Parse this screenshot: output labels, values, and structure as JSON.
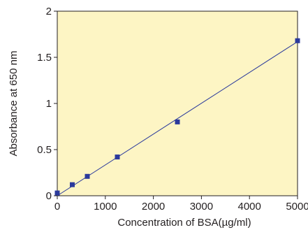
{
  "colors": {
    "plot_background": "#fdf5c4",
    "frame": "#231f20",
    "series": "#2b3a9c"
  },
  "chart_data": {
    "type": "scatter",
    "title": "",
    "xlabel": "Concentration of BSA(µg/ml)",
    "ylabel": "Absorbance at 650 nm",
    "xlim": [
      0,
      5000
    ],
    "ylim": [
      0,
      2
    ],
    "xticks": [
      0,
      1000,
      2000,
      3000,
      4000,
      5000
    ],
    "yticks": [
      0,
      0.5,
      1,
      1.5,
      2
    ],
    "xtick_labels": [
      "0",
      "1000",
      "2000",
      "3000",
      "4000",
      "5000"
    ],
    "ytick_labels": [
      "0",
      "0.5",
      "1",
      "1.5",
      "2"
    ],
    "grid": false,
    "legend": "none",
    "series": [
      {
        "marker": "square",
        "x": [
          0,
          312.5,
          625,
          1250,
          2500,
          5000
        ],
        "y": [
          0.03,
          0.12,
          0.21,
          0.42,
          0.8,
          1.68
        ]
      }
    ],
    "trendline": {
      "type": "linear",
      "x": [
        0,
        5000
      ],
      "y": [
        0.0,
        1.67
      ]
    }
  }
}
